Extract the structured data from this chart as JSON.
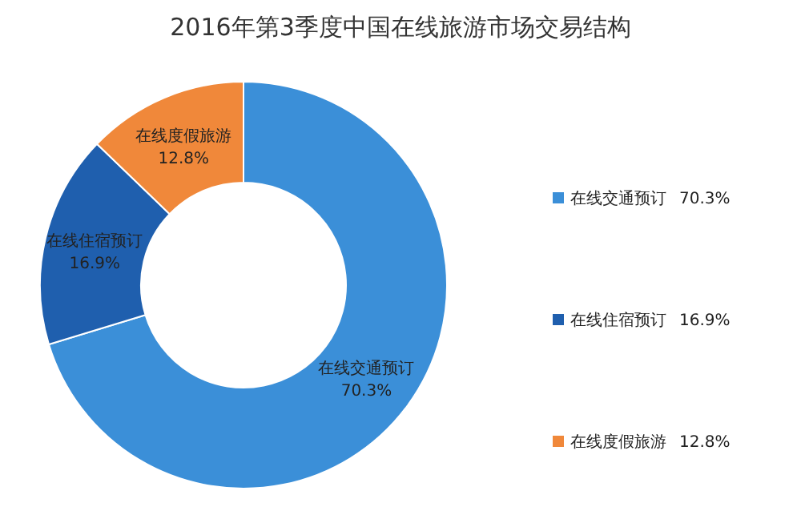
{
  "chart_data": {
    "type": "donut",
    "title": "2016年第3季度中国在线旅游市场交易结构",
    "categories": [
      "在线交通预订",
      "在线住宿预订",
      "在线度假旅游"
    ],
    "values": [
      70.3,
      16.9,
      12.8
    ],
    "value_labels": [
      "70.3%",
      "16.9%",
      "12.8%"
    ],
    "colors": [
      "#3b8fd8",
      "#1f5fae",
      "#f0883a"
    ],
    "legend": "right"
  }
}
